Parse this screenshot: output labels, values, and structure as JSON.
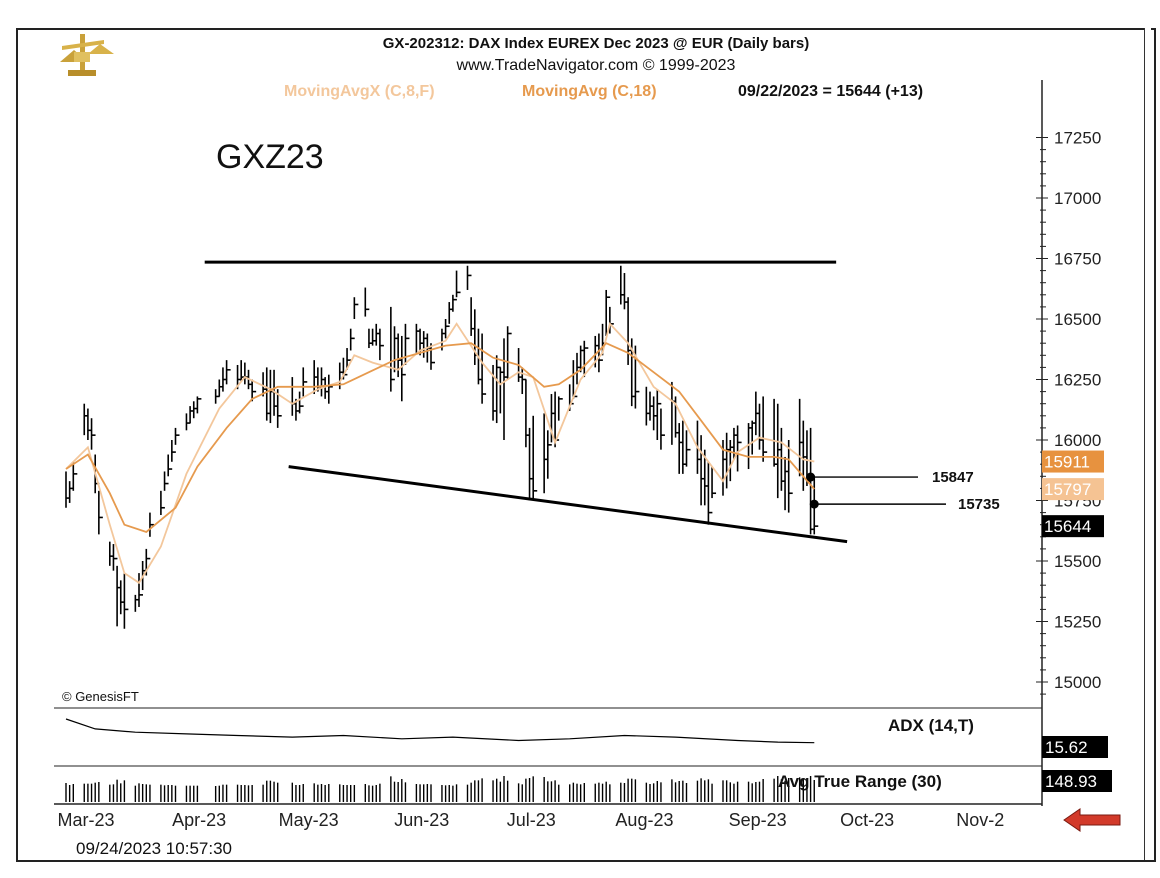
{
  "header": {
    "title": "GX-202312:  DAX Index EUREX Dec 2023 @ EUR  (Daily bars)",
    "site": "www.TradeNavigator.com © 1999-2023",
    "ma_fast_label": "MovingAvgX (C,8,F)",
    "ma_slow_label": "MovingAvg (C,18)",
    "last_quote": "09/22/2023 = 15644 (+13)"
  },
  "symbol_label": "GXZ23",
  "copyright": "© GenesisFT",
  "timestamp": "09/24/2023 10:57:30",
  "colors": {
    "ma_fast": "#f3c79c",
    "ma_slow": "#e69a4e",
    "bars": "#000000",
    "price_tag_fast": "#f5c393",
    "price_tag_slow": "#e7923f",
    "arrow": "#d23a2a"
  },
  "chart_data": {
    "type": "line",
    "x_tick_labels": [
      "Mar-23",
      "Apr-23",
      "May-23",
      "Jun-23",
      "Jul-23",
      "Aug-23",
      "Sep-23",
      "Oct-23",
      "Nov-2"
    ],
    "y_tick_labels": [
      "17250",
      "17000",
      "16750",
      "16500",
      "16250",
      "16000",
      "15750",
      "15500",
      "15250",
      "15000"
    ],
    "ylim": [
      14900,
      17450
    ],
    "price_tags": {
      "ma_fast": "15911",
      "ma_slow": "15797",
      "last": "15644"
    },
    "annotations": [
      {
        "label": "15847",
        "date": "2023-09-21",
        "price": 15847
      },
      {
        "label": "15735",
        "date": "2023-09-22",
        "price": 15735
      }
    ],
    "trendlines": [
      {
        "name": "resistance",
        "x": [
          "2023-04-08",
          "2023-09-28"
        ],
        "y": [
          16735,
          16735
        ]
      },
      {
        "name": "support",
        "x": [
          "2023-05-01",
          "2023-10-01"
        ],
        "y": [
          15890,
          15580
        ]
      }
    ],
    "series": [
      {
        "name": "GXZ23",
        "kind": "ohlc",
        "x": [
          "2023-03-01",
          "2023-03-02",
          "2023-03-03",
          "2023-03-06",
          "2023-03-07",
          "2023-03-08",
          "2023-03-09",
          "2023-03-10",
          "2023-03-13",
          "2023-03-14",
          "2023-03-15",
          "2023-03-16",
          "2023-03-17",
          "2023-03-20",
          "2023-03-21",
          "2023-03-22",
          "2023-03-23",
          "2023-03-24",
          "2023-03-27",
          "2023-03-28",
          "2023-03-29",
          "2023-03-30",
          "2023-03-31",
          "2023-04-03",
          "2023-04-04",
          "2023-04-05",
          "2023-04-06",
          "2023-04-11",
          "2023-04-12",
          "2023-04-13",
          "2023-04-14",
          "2023-04-17",
          "2023-04-18",
          "2023-04-19",
          "2023-04-20",
          "2023-04-21",
          "2023-04-24",
          "2023-04-25",
          "2023-04-26",
          "2023-04-27",
          "2023-04-28",
          "2023-05-02",
          "2023-05-03",
          "2023-05-04",
          "2023-05-05",
          "2023-05-08",
          "2023-05-09",
          "2023-05-10",
          "2023-05-11",
          "2023-05-12",
          "2023-05-15",
          "2023-05-16",
          "2023-05-17",
          "2023-05-18",
          "2023-05-19",
          "2023-05-22",
          "2023-05-23",
          "2023-05-24",
          "2023-05-25",
          "2023-05-26",
          "2023-05-29",
          "2023-05-30",
          "2023-05-31",
          "2023-06-01",
          "2023-06-02",
          "2023-06-05",
          "2023-06-06",
          "2023-06-07",
          "2023-06-08",
          "2023-06-09",
          "2023-06-12",
          "2023-06-13",
          "2023-06-14",
          "2023-06-15",
          "2023-06-16",
          "2023-06-19",
          "2023-06-20",
          "2023-06-21",
          "2023-06-22",
          "2023-06-23",
          "2023-06-26",
          "2023-06-27",
          "2023-06-28",
          "2023-06-29",
          "2023-06-30",
          "2023-07-03",
          "2023-07-04",
          "2023-07-05",
          "2023-07-06",
          "2023-07-07",
          "2023-07-10",
          "2023-07-11",
          "2023-07-12",
          "2023-07-13",
          "2023-07-14",
          "2023-07-17",
          "2023-07-18",
          "2023-07-19",
          "2023-07-20",
          "2023-07-21",
          "2023-07-24",
          "2023-07-25",
          "2023-07-26",
          "2023-07-27",
          "2023-07-28",
          "2023-07-31",
          "2023-08-01",
          "2023-08-02",
          "2023-08-03",
          "2023-08-04",
          "2023-08-07",
          "2023-08-08",
          "2023-08-09",
          "2023-08-10",
          "2023-08-11",
          "2023-08-14",
          "2023-08-15",
          "2023-08-16",
          "2023-08-17",
          "2023-08-18",
          "2023-08-21",
          "2023-08-22",
          "2023-08-23",
          "2023-08-24",
          "2023-08-25",
          "2023-08-28",
          "2023-08-29",
          "2023-08-30",
          "2023-08-31",
          "2023-09-01",
          "2023-09-04",
          "2023-09-05",
          "2023-09-06",
          "2023-09-07",
          "2023-09-08",
          "2023-09-11",
          "2023-09-12",
          "2023-09-13",
          "2023-09-14",
          "2023-09-15",
          "2023-09-18",
          "2023-09-19",
          "2023-09-20",
          "2023-09-21",
          "2023-09-22"
        ],
        "high": [
          15870,
          15830,
          15910,
          16150,
          16130,
          16090,
          15940,
          15790,
          15580,
          15570,
          15480,
          15420,
          15450,
          15360,
          15450,
          15500,
          15550,
          15700,
          15790,
          15870,
          15940,
          16000,
          16050,
          16110,
          16140,
          16160,
          16180,
          16210,
          16250,
          16300,
          16330,
          16310,
          16330,
          16320,
          16290,
          16250,
          16280,
          16300,
          16290,
          16290,
          16210,
          16260,
          16170,
          16200,
          16300,
          16330,
          16300,
          16300,
          16260,
          16270,
          16320,
          16340,
          16380,
          16460,
          16590,
          16630,
          16460,
          16460,
          16480,
          16460,
          16550,
          16470,
          16440,
          16430,
          16480,
          16480,
          16460,
          16450,
          16440,
          16400,
          16460,
          16500,
          16570,
          16600,
          16700,
          16720,
          16590,
          16540,
          16460,
          16440,
          16310,
          16350,
          16300,
          16420,
          16470,
          16380,
          16300,
          16250,
          16050,
          16100,
          16110,
          16040,
          16190,
          16200,
          16180,
          16230,
          16330,
          16360,
          16390,
          16410,
          16430,
          16440,
          16480,
          16620,
          16550,
          16720,
          16690,
          16590,
          16420,
          16390,
          16220,
          16200,
          16180,
          16210,
          16130,
          16240,
          16180,
          16070,
          16080,
          16040,
          16080,
          16020,
          15960,
          15910,
          15890,
          16000,
          16030,
          16000,
          16050,
          16060,
          16070,
          16080,
          16200,
          16150,
          16180,
          16170,
          16150,
          16050,
          15930,
          16000,
          16170,
          16080,
          16040,
          16050,
          15850
        ],
        "low": [
          15720,
          15740,
          15790,
          16020,
          16000,
          15960,
          15780,
          15610,
          15480,
          15460,
          15230,
          15280,
          15220,
          15290,
          15310,
          15380,
          15440,
          15600,
          15690,
          15790,
          15850,
          15910,
          15980,
          16040,
          16070,
          16090,
          16110,
          16150,
          16180,
          16200,
          16230,
          16210,
          16240,
          16230,
          16210,
          16160,
          16180,
          16080,
          16070,
          16100,
          16050,
          16100,
          16080,
          16110,
          16180,
          16190,
          16200,
          16180,
          16170,
          16150,
          16210,
          16250,
          16290,
          16370,
          16500,
          16510,
          16380,
          16390,
          16390,
          16330,
          16200,
          16280,
          16260,
          16160,
          16310,
          16360,
          16350,
          16340,
          16320,
          16290,
          16370,
          16420,
          16480,
          16530,
          16590,
          16620,
          16430,
          16310,
          16230,
          16150,
          16080,
          16070,
          16110,
          16000,
          16250,
          16240,
          16190,
          15970,
          15750,
          15750,
          15780,
          15840,
          15990,
          15970,
          16080,
          16120,
          16170,
          16230,
          16280,
          16260,
          16300,
          16280,
          16350,
          16430,
          16440,
          16560,
          16540,
          16310,
          16140,
          16130,
          16060,
          16080,
          16040,
          16000,
          15960,
          15980,
          16010,
          15860,
          15860,
          15890,
          15860,
          15730,
          15730,
          15650,
          15760,
          15770,
          15800,
          15830,
          15920,
          15870,
          15880,
          15940,
          16020,
          15960,
          15910,
          15890,
          15760,
          15790,
          15710,
          15700,
          15850,
          15790,
          15810,
          15610,
          15610
        ],
        "close": [
          15760,
          15800,
          15860,
          16100,
          16040,
          16020,
          15820,
          15680,
          15520,
          15510,
          15390,
          15330,
          15300,
          15340,
          15360,
          15460,
          15510,
          15650,
          15720,
          15820,
          15880,
          15950,
          16020,
          16070,
          16120,
          16130,
          16170,
          16180,
          16220,
          16250,
          16290,
          16250,
          16260,
          16260,
          16230,
          16200,
          16210,
          16110,
          16200,
          16140,
          16100,
          16150,
          16120,
          16140,
          16240,
          16260,
          16220,
          16250,
          16200,
          16220,
          16280,
          16270,
          16330,
          16420,
          16560,
          16540,
          16400,
          16410,
          16440,
          16390,
          16250,
          16420,
          16330,
          16270,
          16420,
          16450,
          16400,
          16420,
          16380,
          16320,
          16440,
          16470,
          16540,
          16580,
          16610,
          16680,
          16460,
          16350,
          16250,
          16190,
          16120,
          16300,
          16280,
          16260,
          16440,
          16260,
          16250,
          16020,
          15840,
          15790,
          15920,
          15980,
          16110,
          16000,
          16170,
          16150,
          16180,
          16300,
          16370,
          16380,
          16390,
          16330,
          16400,
          16590,
          16480,
          16600,
          16570,
          16370,
          16180,
          16200,
          16110,
          16140,
          16100,
          16150,
          16020,
          16160,
          16030,
          15990,
          15900,
          15960,
          15920,
          15840,
          15810,
          15700,
          15780,
          15920,
          15960,
          15970,
          16020,
          15990,
          16050,
          16070,
          16110,
          16000,
          15950,
          15900,
          15960,
          15830,
          15870,
          15780,
          15990,
          15930,
          15830,
          15631,
          15644
        ]
      },
      {
        "name": "MovingAvgX (C,8,F)",
        "kind": "line",
        "x": [
          "2023-03-01",
          "2023-03-07",
          "2023-03-13",
          "2023-03-17",
          "2023-03-21",
          "2023-03-27",
          "2023-04-03",
          "2023-04-12",
          "2023-04-19",
          "2023-04-26",
          "2023-05-02",
          "2023-05-09",
          "2023-05-15",
          "2023-05-19",
          "2023-05-24",
          "2023-05-31",
          "2023-06-06",
          "2023-06-13",
          "2023-06-16",
          "2023-06-23",
          "2023-06-28",
          "2023-07-03",
          "2023-07-07",
          "2023-07-13",
          "2023-07-20",
          "2023-07-26",
          "2023-07-28",
          "2023-08-02",
          "2023-08-09",
          "2023-08-15",
          "2023-08-21",
          "2023-08-28",
          "2023-09-01",
          "2023-09-07",
          "2023-09-13",
          "2023-09-19",
          "2023-09-22"
        ],
        "y": [
          15880,
          15970,
          15650,
          15450,
          15410,
          15560,
          15860,
          16130,
          16260,
          16210,
          16150,
          16210,
          16240,
          16350,
          16320,
          16290,
          16370,
          16410,
          16480,
          16320,
          16230,
          16280,
          16260,
          15990,
          16250,
          16360,
          16480,
          16400,
          16220,
          16150,
          15970,
          15830,
          15950,
          16010,
          15990,
          15920,
          15911
        ]
      },
      {
        "name": "MovingAvg (C,18)",
        "kind": "line",
        "x": [
          "2023-03-01",
          "2023-03-07",
          "2023-03-13",
          "2023-03-17",
          "2023-03-23",
          "2023-03-31",
          "2023-04-06",
          "2023-04-14",
          "2023-04-21",
          "2023-04-28",
          "2023-05-08",
          "2023-05-16",
          "2023-05-23",
          "2023-05-30",
          "2023-06-06",
          "2023-06-13",
          "2023-06-20",
          "2023-06-26",
          "2023-07-03",
          "2023-07-10",
          "2023-07-14",
          "2023-07-20",
          "2023-07-27",
          "2023-08-02",
          "2023-08-09",
          "2023-08-16",
          "2023-08-22",
          "2023-08-28",
          "2023-09-04",
          "2023-09-11",
          "2023-09-15",
          "2023-09-22"
        ],
        "y": [
          15880,
          15940,
          15780,
          15650,
          15620,
          15720,
          15890,
          16050,
          16170,
          16220,
          16220,
          16230,
          16280,
          16330,
          16360,
          16390,
          16400,
          16340,
          16310,
          16220,
          16230,
          16290,
          16400,
          16360,
          16280,
          16200,
          16080,
          15960,
          15930,
          15930,
          15920,
          15797
        ]
      },
      {
        "name": "ADX (14,T)",
        "kind": "indicator",
        "x": [
          "2023-03-01",
          "2023-03-09",
          "2023-03-20",
          "2023-04-03",
          "2023-04-17",
          "2023-05-02",
          "2023-05-16",
          "2023-06-01",
          "2023-06-15",
          "2023-07-03",
          "2023-07-17",
          "2023-08-01",
          "2023-08-15",
          "2023-09-01",
          "2023-09-12",
          "2023-09-22"
        ],
        "y": [
          30,
          24,
          22,
          21,
          20,
          19,
          20,
          18,
          19,
          17,
          18,
          20,
          19,
          17,
          16,
          15.62
        ],
        "last_label": "15.62"
      },
      {
        "name": "Avg True Range (30)",
        "kind": "indicator_bars",
        "last_label": "148.93"
      }
    ]
  }
}
